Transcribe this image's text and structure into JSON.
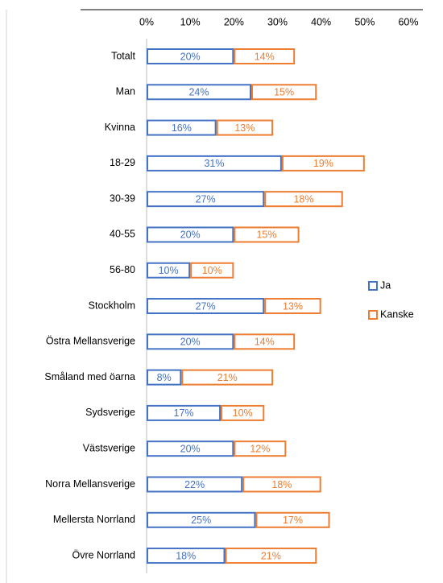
{
  "chart_data": {
    "type": "stacked-barh",
    "categories": [
      "Totalt",
      "Man",
      "Kvinna",
      "18-29",
      "30-39",
      "40-55",
      "56-80",
      "Stockholm",
      "Östra Mellansverige",
      "Småland med öarna",
      "Sydsverige",
      "Västsverige",
      "Norra Mellansverige",
      "Mellersta Norrland",
      "Övre Norrland"
    ],
    "series": [
      {
        "name": "Ja",
        "color": "#4472c4",
        "values": [
          20,
          24,
          16,
          31,
          27,
          20,
          10,
          27,
          20,
          8,
          17,
          20,
          22,
          25,
          18
        ],
        "value_labels": [
          "20%",
          "24%",
          "16%",
          "31%",
          "27%",
          "20%",
          "10%",
          "27%",
          "20%",
          "8%",
          "17%",
          "20%",
          "22%",
          "25%",
          "18%"
        ]
      },
      {
        "name": "Kanske",
        "color": "#ed7d31",
        "values": [
          14,
          15,
          13,
          19,
          18,
          15,
          10,
          13,
          14,
          21,
          10,
          12,
          18,
          17,
          21
        ],
        "value_labels": [
          "14%",
          "15%",
          "13%",
          "19%",
          "18%",
          "15%",
          "10%",
          "13%",
          "14%",
          "21%",
          "10%",
          "12%",
          "18%",
          "17%",
          "21%"
        ]
      }
    ],
    "xlim": [
      0,
      60
    ],
    "xticks": [
      {
        "value": 0,
        "label": "0%"
      },
      {
        "value": 10,
        "label": "10%"
      },
      {
        "value": 20,
        "label": "20%"
      },
      {
        "value": 30,
        "label": "30%"
      },
      {
        "value": 40,
        "label": "40%"
      },
      {
        "value": 50,
        "label": "50%"
      },
      {
        "value": 60,
        "label": "60%"
      }
    ],
    "legend": "right"
  }
}
